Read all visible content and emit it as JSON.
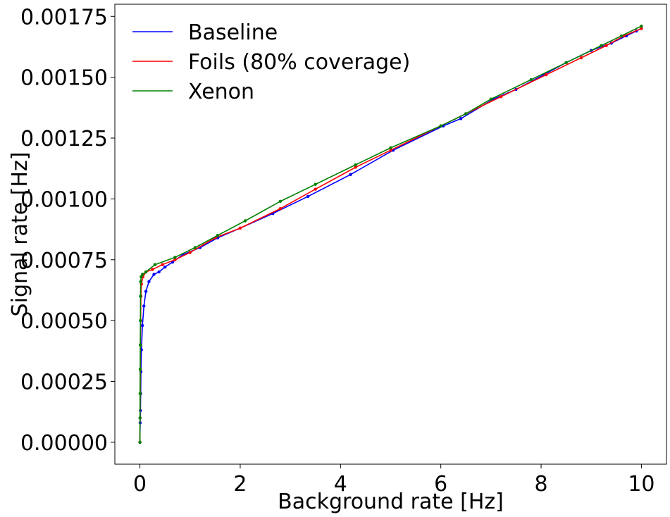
{
  "chart_data": {
    "type": "line",
    "title": "",
    "xlabel": "Background rate [Hz]",
    "ylabel": "Signal rate [Hz]",
    "xlim": [
      -0.5,
      10.5
    ],
    "ylim": [
      -9e-05,
      0.0018
    ],
    "x_ticks": [
      0,
      2,
      4,
      6,
      8,
      10
    ],
    "x_tick_labels": [
      "0",
      "2",
      "4",
      "6",
      "8",
      "10"
    ],
    "y_ticks": [
      0,
      0.00025,
      0.0005,
      0.00075,
      0.001,
      0.00125,
      0.0015,
      0.00175
    ],
    "y_tick_labels": [
      "0.00000",
      "0.00025",
      "0.00050",
      "0.00075",
      "0.00100",
      "0.00125",
      "0.00150",
      "0.00175"
    ],
    "grid": false,
    "legend": "top-left",
    "series": [
      {
        "name": "Baseline",
        "color": "#0000ff",
        "points": [
          [
            0.0,
            0.0
          ],
          [
            0.005,
            8e-05
          ],
          [
            0.01,
            0.00013
          ],
          [
            0.015,
            0.0002
          ],
          [
            0.02,
            0.00029
          ],
          [
            0.03,
            0.00038
          ],
          [
            0.05,
            0.00048
          ],
          [
            0.08,
            0.00056
          ],
          [
            0.12,
            0.00062
          ],
          [
            0.18,
            0.00066
          ],
          [
            0.28,
            0.00069
          ],
          [
            0.38,
            0.0007
          ],
          [
            0.5,
            0.00072
          ],
          [
            0.65,
            0.00074
          ],
          [
            0.85,
            0.00077
          ],
          [
            1.2,
            0.0008
          ],
          [
            1.55,
            0.00084
          ],
          [
            2.0,
            0.00088
          ],
          [
            2.65,
            0.00094
          ],
          [
            3.35,
            0.00101
          ],
          [
            4.2,
            0.0011
          ],
          [
            5.05,
            0.0012
          ],
          [
            6.05,
            0.0013
          ],
          [
            6.4,
            0.00133
          ],
          [
            7.05,
            0.00141
          ],
          [
            7.5,
            0.00145
          ],
          [
            8.05,
            0.00151
          ],
          [
            8.5,
            0.00156
          ],
          [
            9.0,
            0.00161
          ],
          [
            9.4,
            0.00164
          ],
          [
            9.7,
            0.00167
          ],
          [
            9.9,
            0.00169
          ],
          [
            10.0,
            0.0017
          ]
        ]
      },
      {
        "name": "Foils (80% coverage)",
        "color": "#ff0000",
        "points": [
          [
            0.0,
            0.0
          ],
          [
            0.003,
            0.0001
          ],
          [
            0.005,
            0.0002
          ],
          [
            0.008,
            0.0003
          ],
          [
            0.01,
            0.0004
          ],
          [
            0.015,
            0.0005
          ],
          [
            0.02,
            0.0006
          ],
          [
            0.03,
            0.00065
          ],
          [
            0.06,
            0.00068
          ],
          [
            0.12,
            0.0007
          ],
          [
            0.25,
            0.00071
          ],
          [
            0.45,
            0.00073
          ],
          [
            0.7,
            0.00075
          ],
          [
            1.0,
            0.00078
          ],
          [
            1.5,
            0.00084
          ],
          [
            2.0,
            0.00088
          ],
          [
            2.8,
            0.00096
          ],
          [
            3.5,
            0.00104
          ],
          [
            4.3,
            0.00113
          ],
          [
            5.0,
            0.0012
          ],
          [
            6.0,
            0.0013
          ],
          [
            6.5,
            0.00135
          ],
          [
            7.2,
            0.00142
          ],
          [
            8.1,
            0.00151
          ],
          [
            8.8,
            0.00158
          ],
          [
            9.3,
            0.00163
          ],
          [
            9.65,
            0.00167
          ],
          [
            10.0,
            0.0017
          ]
        ]
      },
      {
        "name": "Xenon",
        "color": "#008000",
        "points": [
          [
            0.0,
            0.0
          ],
          [
            0.002,
            0.0001
          ],
          [
            0.004,
            0.0002
          ],
          [
            0.006,
            0.0003
          ],
          [
            0.008,
            0.0004
          ],
          [
            0.01,
            0.0005
          ],
          [
            0.012,
            0.0006
          ],
          [
            0.015,
            0.00066
          ],
          [
            0.025,
            0.00068
          ],
          [
            0.05,
            0.00069
          ],
          [
            0.12,
            0.0007
          ],
          [
            0.3,
            0.00073
          ],
          [
            0.7,
            0.00076
          ],
          [
            1.1,
            0.0008
          ],
          [
            1.55,
            0.00085
          ],
          [
            2.1,
            0.00091
          ],
          [
            2.8,
            0.00099
          ],
          [
            3.5,
            0.00106
          ],
          [
            4.3,
            0.00114
          ],
          [
            5.0,
            0.00121
          ],
          [
            6.0,
            0.0013
          ],
          [
            6.5,
            0.00135
          ],
          [
            7.0,
            0.00141
          ],
          [
            7.8,
            0.00149
          ],
          [
            8.5,
            0.00156
          ],
          [
            9.2,
            0.00163
          ],
          [
            9.6,
            0.00167
          ],
          [
            10.0,
            0.00171
          ]
        ]
      }
    ]
  }
}
